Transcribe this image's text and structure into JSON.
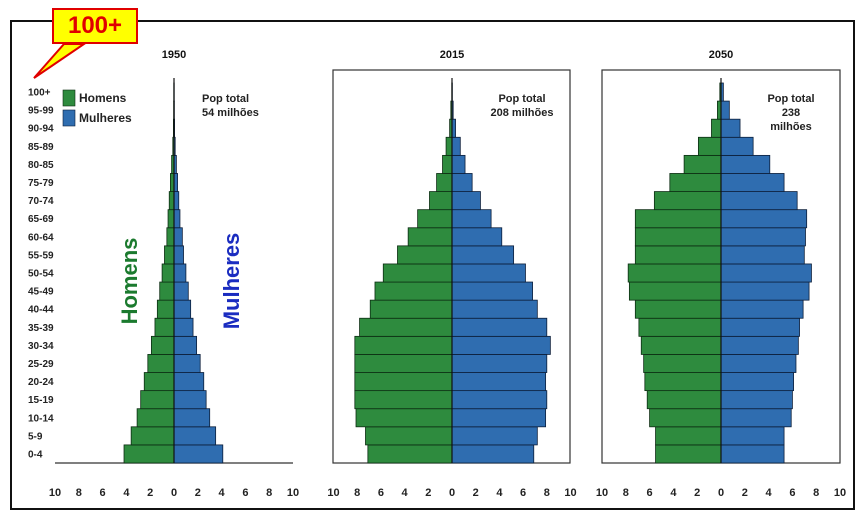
{
  "callout_label": "100+",
  "rotated_labels": {
    "men": "Homens",
    "women": "Mulheres"
  },
  "colors": {
    "men": "#2e8b3e",
    "women": "#2f6db0",
    "callout_bg": "#ffff00",
    "callout_border": "#e00000",
    "rot_men": "#1b7a2e",
    "rot_women": "#1a2cc0"
  },
  "chart_data": {
    "type": "bar",
    "orientation": "horizontal-population-pyramid",
    "age_groups": [
      "0-4",
      "5-9",
      "10-14",
      "15-19",
      "20-24",
      "25-29",
      "30-34",
      "35-39",
      "40-44",
      "45-49",
      "50-54",
      "55-59",
      "60-64",
      "65-69",
      "70-74",
      "75-79",
      "80-85",
      "85-89",
      "90-94",
      "95-99",
      "100+"
    ],
    "xticks": [
      "10",
      "8",
      "6",
      "4",
      "2",
      "0",
      "2",
      "4",
      "6",
      "8",
      "10"
    ],
    "xlim": [
      -10,
      10
    ],
    "legend": {
      "entries": [
        "Homens",
        "Mulheres"
      ],
      "position": "top-left"
    },
    "panels": [
      {
        "title": "1950",
        "annotation": [
          "Pop total",
          "54 milhões"
        ],
        "men": [
          4.2,
          3.6,
          3.1,
          2.8,
          2.5,
          2.2,
          1.9,
          1.6,
          1.4,
          1.2,
          1.0,
          0.8,
          0.6,
          0.5,
          0.4,
          0.3,
          0.2,
          0.1,
          0.05,
          0.03,
          0.02
        ],
        "women": [
          4.1,
          3.5,
          3.0,
          2.7,
          2.5,
          2.2,
          1.9,
          1.6,
          1.4,
          1.2,
          1.0,
          0.8,
          0.7,
          0.5,
          0.4,
          0.3,
          0.2,
          0.1,
          0.05,
          0.03,
          0.02
        ]
      },
      {
        "title": "2015",
        "annotation": [
          "Pop total",
          "208 milhões"
        ],
        "men": [
          7.1,
          7.3,
          8.1,
          8.2,
          8.2,
          8.2,
          8.2,
          7.8,
          6.9,
          6.5,
          5.8,
          4.6,
          3.7,
          2.9,
          1.9,
          1.3,
          0.8,
          0.5,
          0.2,
          0.1,
          0.02
        ],
        "women": [
          6.9,
          7.2,
          7.9,
          8.0,
          7.9,
          8.0,
          8.3,
          8.0,
          7.2,
          6.8,
          6.2,
          5.2,
          4.2,
          3.3,
          2.4,
          1.7,
          1.1,
          0.7,
          0.3,
          0.1,
          0.03
        ]
      },
      {
        "title": "2050",
        "annotation": [
          "Pop total",
          "238",
          "milhões"
        ],
        "men": [
          5.5,
          5.5,
          6.0,
          6.2,
          6.4,
          6.5,
          6.7,
          6.9,
          7.2,
          7.7,
          7.8,
          7.2,
          7.2,
          7.2,
          5.6,
          4.3,
          3.1,
          1.9,
          0.8,
          0.3,
          0.1
        ],
        "women": [
          5.3,
          5.3,
          5.9,
          6.0,
          6.1,
          6.3,
          6.5,
          6.6,
          6.9,
          7.4,
          7.6,
          7.0,
          7.1,
          7.2,
          6.4,
          5.3,
          4.1,
          2.7,
          1.6,
          0.7,
          0.2
        ]
      }
    ]
  }
}
